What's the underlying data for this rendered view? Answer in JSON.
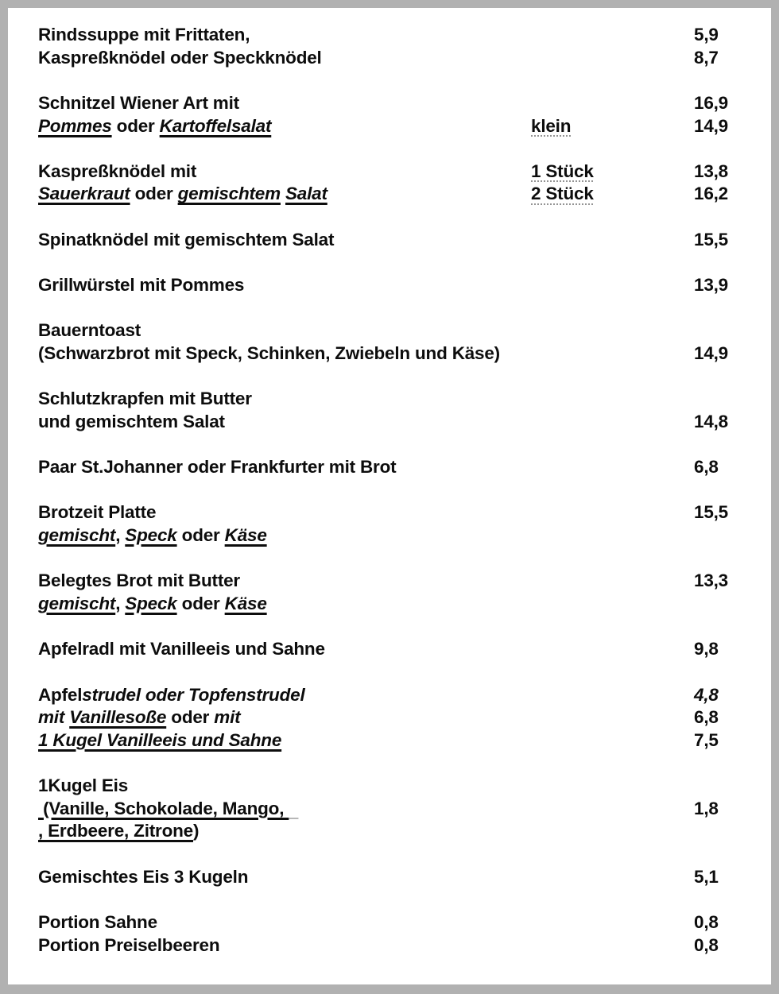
{
  "page": {
    "background_color": "#b1b1b1",
    "paper_color": "#ffffff",
    "text_color": "#0d0d0d"
  },
  "menu": {
    "items": [
      {
        "lines": [
          {
            "segments": [
              {
                "t": "Rindssuppe mit Frittaten,",
                "s": "b"
              }
            ],
            "price": "5,9"
          },
          {
            "segments": [
              {
                "t": "Kaspreßknödel oder Speckknödel",
                "s": "b"
              }
            ],
            "price": "8,7"
          }
        ]
      },
      {
        "lines": [
          {
            "segments": [
              {
                "t": "Schnitzel Wiener Art mit",
                "s": "b"
              }
            ],
            "price": "16,9"
          },
          {
            "segments": [
              {
                "t": "Pommes",
                "s": "biu"
              },
              {
                "t": " oder ",
                "s": "b"
              },
              {
                "t": "Kartoffelsalat",
                "s": "biu"
              }
            ],
            "mid": "klein",
            "price": "14,9"
          }
        ]
      },
      {
        "lines": [
          {
            "segments": [
              {
                "t": "Kaspreßknödel mit",
                "s": "b"
              }
            ],
            "mid": "1 Stück",
            "price": "13,8"
          },
          {
            "segments": [
              {
                "t": "Sauerkraut",
                "s": "biu"
              },
              {
                "t": " oder ",
                "s": "b"
              },
              {
                "t": "gemischtem",
                "s": "biu"
              },
              {
                "t": " ",
                "s": "b"
              },
              {
                "t": "Salat",
                "s": "biu"
              }
            ],
            "mid": "2 Stück",
            "price": "16,2"
          }
        ]
      },
      {
        "lines": [
          {
            "segments": [
              {
                "t": "Spinatknödel mit gemischtem Salat",
                "s": "b"
              }
            ],
            "price": "15,5"
          }
        ]
      },
      {
        "lines": [
          {
            "segments": [
              {
                "t": "Grillwürstel mit Pommes",
                "s": "b"
              }
            ],
            "price": "13,9"
          }
        ]
      },
      {
        "lines": [
          {
            "segments": [
              {
                "t": "Bauerntoast",
                "s": "b"
              }
            ]
          },
          {
            "segments": [
              {
                "t": "(Schwarzbrot mit Speck, Schinken, Zwiebeln und Käse)",
                "s": "b"
              }
            ],
            "price": "14,9"
          }
        ]
      },
      {
        "lines": [
          {
            "segments": [
              {
                "t": "Schlutzkrapfen mit Butter",
                "s": "b"
              }
            ]
          },
          {
            "segments": [
              {
                "t": "und gemischtem Salat",
                "s": "b"
              }
            ],
            "price": "14,8"
          }
        ]
      },
      {
        "lines": [
          {
            "segments": [
              {
                "t": "Paar St.Johanner oder Frankfurter mit Brot",
                "s": "b"
              }
            ],
            "price": "6,8"
          }
        ]
      },
      {
        "lines": [
          {
            "segments": [
              {
                "t": "Brotzeit Platte",
                "s": "b"
              }
            ],
            "price": "15,5"
          },
          {
            "segments": [
              {
                "t": "gemischt",
                "s": "biu"
              },
              {
                "t": ", ",
                "s": "b"
              },
              {
                "t": "Speck",
                "s": "biu"
              },
              {
                "t": " oder ",
                "s": "b"
              },
              {
                "t": "Käse",
                "s": "biu"
              }
            ]
          }
        ]
      },
      {
        "lines": [
          {
            "segments": [
              {
                "t": "Belegtes Brot mit Butter",
                "s": "b"
              }
            ],
            "price": "13,3"
          },
          {
            "segments": [
              {
                "t": "gemischt",
                "s": "biu"
              },
              {
                "t": ", ",
                "s": "b"
              },
              {
                "t": "Speck",
                "s": "biu"
              },
              {
                "t": " oder ",
                "s": "b"
              },
              {
                "t": "Käse",
                "s": "biu"
              }
            ]
          }
        ]
      },
      {
        "lines": [
          {
            "segments": [
              {
                "t": "Apfelradl mit Vanilleeis und Sahne",
                "s": "b"
              }
            ],
            "price": "9,8"
          }
        ]
      },
      {
        "lines": [
          {
            "segments": [
              {
                "t": "Apfel",
                "s": "b"
              },
              {
                "t": "strudel oder Topfenstrudel",
                "s": "bi"
              }
            ],
            "price": "4,8",
            "price_italic": true
          },
          {
            "segments": [
              {
                "t": "mit ",
                "s": "bi"
              },
              {
                "t": "Vanillesoße",
                "s": "biu"
              },
              {
                "t": " oder ",
                "s": "b"
              },
              {
                "t": "mit",
                "s": "bi"
              }
            ],
            "price": "6,8"
          },
          {
            "segments": [
              {
                "t": "1 Kugel Vanilleeis und Sahne",
                "s": "biu"
              }
            ],
            "price": "7,5"
          }
        ]
      },
      {
        "lines": [
          {
            "segments": [
              {
                "t": "1Kugel Eis",
                "s": "b"
              }
            ]
          },
          {
            "segments": [
              {
                "t": " (Vanille, Schokolade, Mango, ",
                "s": "bu"
              },
              {
                "t": "  ",
                "s": "ext"
              }
            ],
            "price": "1,8"
          },
          {
            "segments": [
              {
                "t": ", Erdbeere, Zitrone",
                "s": "bu"
              },
              {
                "t": ")",
                "s": "b"
              }
            ]
          }
        ]
      },
      {
        "lines": [
          {
            "segments": [
              {
                "t": "Gemischtes Eis 3 Kugeln",
                "s": "b"
              }
            ],
            "price": "5,1"
          }
        ]
      },
      {
        "lines": [
          {
            "segments": [
              {
                "t": "Portion Sahne",
                "s": "b"
              }
            ],
            "price": "0,8"
          },
          {
            "segments": [
              {
                "t": "Portion Preiselbeeren",
                "s": "b"
              }
            ],
            "price": "0,8"
          }
        ]
      }
    ]
  }
}
